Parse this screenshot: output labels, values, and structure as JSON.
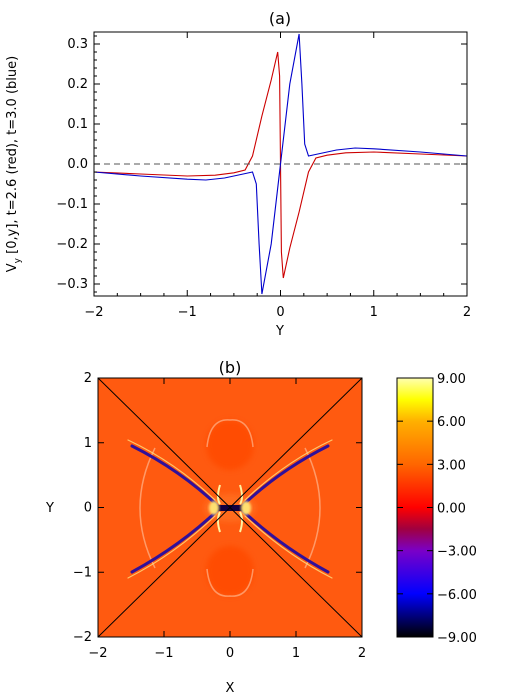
{
  "chart_data": [
    {
      "panel_label": "(a)",
      "type": "line",
      "xlabel": "Y",
      "ylabel": "V",
      "ylabel_subscript": "y",
      "ylabel_rest": " [0,y], t=2.6 (red), t=3.0 (blue)",
      "xlim": [
        -2,
        2
      ],
      "ylim": [
        -0.33,
        0.33
      ],
      "x_ticks": [
        -2,
        -1,
        0,
        1,
        2
      ],
      "x_tick_labels": [
        "−2",
        "−1",
        "0",
        "1",
        "2"
      ],
      "y_ticks": [
        -0.3,
        -0.2,
        -0.1,
        0.0,
        0.1,
        0.2,
        0.3
      ],
      "y_tick_labels": [
        "−0.3",
        "−0.2",
        "−0.1",
        "0.0",
        "0.1",
        "0.2",
        "0.3"
      ],
      "reference_line": {
        "y": 0.0,
        "style": "dashed"
      },
      "series": [
        {
          "color": "#cc0000",
          "x": [
            -2.0,
            -1.5,
            -1.0,
            -0.7,
            -0.5,
            -0.38,
            -0.3,
            -0.2,
            -0.1,
            -0.03,
            -0.01,
            0.0,
            0.01,
            0.03,
            0.1,
            0.2,
            0.3,
            0.38,
            0.5,
            0.7,
            1.0,
            1.5,
            2.0
          ],
          "y": [
            -0.02,
            -0.025,
            -0.03,
            -0.028,
            -0.022,
            -0.015,
            0.02,
            0.12,
            0.21,
            0.28,
            0.22,
            0.0,
            -0.22,
            -0.285,
            -0.21,
            -0.12,
            -0.02,
            0.015,
            0.022,
            0.028,
            0.03,
            0.025,
            0.02
          ]
        },
        {
          "color": "#0000cc",
          "x": [
            -2.0,
            -1.5,
            -1.0,
            -0.8,
            -0.6,
            -0.4,
            -0.3,
            -0.26,
            -0.23,
            -0.2,
            -0.1,
            0.0,
            0.1,
            0.2,
            0.23,
            0.26,
            0.3,
            0.4,
            0.6,
            0.8,
            1.0,
            1.5,
            2.0
          ],
          "y": [
            -0.02,
            -0.03,
            -0.038,
            -0.04,
            -0.035,
            -0.025,
            -0.02,
            -0.05,
            -0.2,
            -0.325,
            -0.2,
            0.0,
            0.2,
            0.325,
            0.2,
            0.05,
            0.02,
            0.025,
            0.035,
            0.04,
            0.038,
            0.03,
            0.02
          ]
        }
      ]
    },
    {
      "panel_label": "(b)",
      "type": "heatmap",
      "xlabel": "X",
      "ylabel": "Y",
      "xlim": [
        -2,
        2
      ],
      "ylim": [
        -2,
        2
      ],
      "x_ticks": [
        -2,
        -1,
        0,
        1,
        2
      ],
      "x_tick_labels": [
        "−2",
        "−1",
        "0",
        "1",
        "2"
      ],
      "y_ticks": [
        -2,
        -1,
        0,
        1,
        2
      ],
      "y_tick_labels": [
        "−2",
        "−1",
        "0",
        "1",
        "2"
      ],
      "background_value": 1.5,
      "colorbar": {
        "range": [
          -9,
          9
        ],
        "ticks": [
          9,
          6,
          3,
          0,
          -3,
          -6,
          -9
        ],
        "tick_labels": [
          "9.00",
          "6.00",
          "3.00",
          "0.00",
          "−3.00",
          "−6.00",
          "−9.00"
        ],
        "stops": [
          {
            "value": -9,
            "color": "#000000"
          },
          {
            "value": -6,
            "color": "#0000ff"
          },
          {
            "value": -3,
            "color": "#7a00c8"
          },
          {
            "value": -1.5,
            "color": "#a00040"
          },
          {
            "value": 0,
            "color": "#ff0000"
          },
          {
            "value": 3,
            "color": "#ff6600"
          },
          {
            "value": 6,
            "color": "#ffb000"
          },
          {
            "value": 7.5,
            "color": "#ffff00"
          },
          {
            "value": 9,
            "color": "#ffffb0"
          }
        ]
      },
      "diagonals": [
        {
          "from": [
            -2,
            -2
          ],
          "to": [
            2,
            2
          ]
        },
        {
          "from": [
            -2,
            2
          ],
          "to": [
            2,
            -2
          ]
        }
      ]
    }
  ],
  "colors": {
    "axes": "#000000",
    "red_series": "#cc0000",
    "blue_series": "#0000cc",
    "heatmap_background": "#ff5a10"
  }
}
